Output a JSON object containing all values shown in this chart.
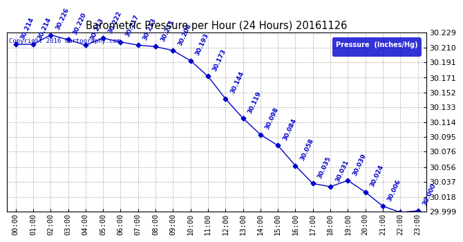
{
  "title": "Barometric Pressure per Hour (24 Hours) 20161126",
  "copyright_text": "Copyright 2016 Cartography.com",
  "legend_label": "Pressure  (Inches/Hg)",
  "hours": [
    0,
    1,
    2,
    3,
    4,
    5,
    6,
    7,
    8,
    9,
    10,
    11,
    12,
    13,
    14,
    15,
    16,
    17,
    18,
    19,
    20,
    21,
    22,
    23
  ],
  "x_labels": [
    "00:00",
    "01:00",
    "02:00",
    "03:00",
    "04:00",
    "05:00",
    "06:00",
    "07:00",
    "08:00",
    "09:00",
    "10:00",
    "11:00",
    "12:00",
    "13:00",
    "14:00",
    "15:00",
    "16:00",
    "17:00",
    "18:00",
    "19:00",
    "20:00",
    "21:00",
    "22:00",
    "23:00"
  ],
  "pressure": [
    30.214,
    30.214,
    30.226,
    30.22,
    30.213,
    30.222,
    30.217,
    30.213,
    30.211,
    30.206,
    30.193,
    30.173,
    30.144,
    30.119,
    30.098,
    30.084,
    30.058,
    30.035,
    30.031,
    30.039,
    30.024,
    30.006,
    29.998,
    30.0
  ],
  "ylim_min": 29.999,
  "ylim_max": 30.229,
  "yticks": [
    29.999,
    30.018,
    30.037,
    30.056,
    30.076,
    30.095,
    30.114,
    30.133,
    30.152,
    30.171,
    30.191,
    30.21,
    30.229
  ],
  "line_color": "#0000cc",
  "marker_color": "#0000cc",
  "bg_color": "#ffffff",
  "plot_bg_color": "#ffffff",
  "grid_color": "#aaaaaa",
  "title_color": "#000000",
  "label_color": "#0000cc",
  "legend_bg": "#0000cc",
  "legend_text_color": "#ffffff",
  "annotation_rotation": 65
}
